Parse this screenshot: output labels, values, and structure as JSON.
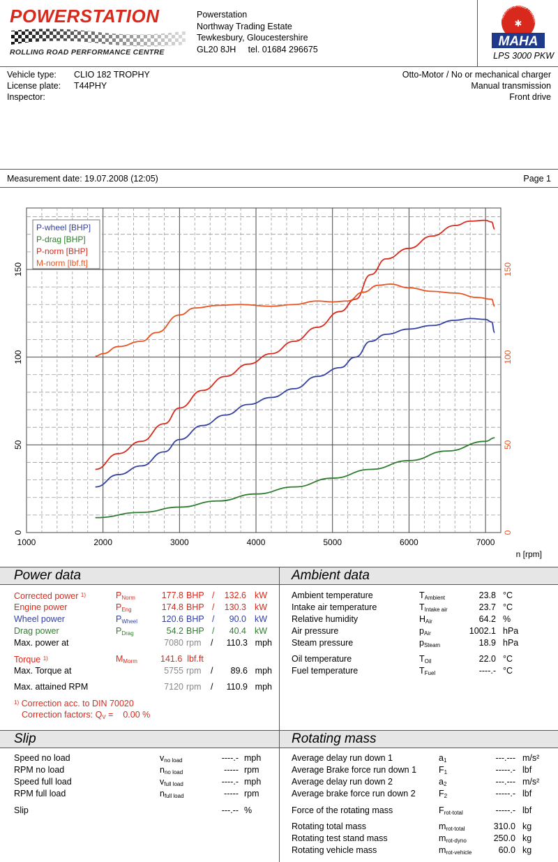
{
  "header": {
    "logo_title": "POWERSTATION",
    "logo_subtitle": "ROLLING ROAD PERFORMANCE CENTRE",
    "address": [
      "Powerstation",
      "Northway Trading Estate",
      "Tewkesbury, Gloucestershire",
      "GL20 8JH     tel. 01684 296675"
    ],
    "maha_logo": "MAHA",
    "maha_ring": "Maschinenbau Haldenwang",
    "dyno_model": "LPS 3000 PKW"
  },
  "vehicle": {
    "type_label": "Vehicle type:",
    "type_value": "CLIO 182 TROPHY",
    "plate_label": "License plate:",
    "plate_value": "T44PHY",
    "inspector_label": "Inspector:",
    "inspector_value": "",
    "engine": "Otto-Motor / No or mechanical charger",
    "transmission": "Manual transmission",
    "drive": "Front drive"
  },
  "measurement": {
    "date": "Measurement date: 19.07.2008 (12:05)",
    "page": "Page 1"
  },
  "colors": {
    "wheel": "#3340a0",
    "drag": "#2e7d2e",
    "norm": "#d8291c",
    "grid": "#555555"
  },
  "chart_data": {
    "type": "line",
    "xlabel": "n [rpm]",
    "xlim": [
      1000,
      7200
    ],
    "ylim": [
      0,
      185
    ],
    "x_ticks": [
      1000,
      2000,
      3000,
      4000,
      5000,
      6000,
      7000
    ],
    "y_ticks": [
      0,
      50,
      100,
      150
    ],
    "legend": "top-left",
    "series": [
      {
        "name": "P-wheel [BHP]",
        "color": "#3340a0",
        "x": [
          1900,
          2200,
          2500,
          2800,
          3000,
          3300,
          3600,
          3900,
          4200,
          4500,
          4800,
          5100,
          5300,
          5500,
          5700,
          6000,
          6300,
          6600,
          6800,
          7000,
          7080,
          7120
        ],
        "y": [
          26,
          33,
          38,
          46,
          53,
          61,
          67,
          73,
          77,
          82,
          89,
          94,
          100,
          109,
          113,
          116,
          118,
          121,
          122,
          121.5,
          120,
          114
        ]
      },
      {
        "name": "P-drag [BHP]",
        "color": "#2e7d2e",
        "x": [
          1900,
          2500,
          3000,
          3500,
          4000,
          4500,
          5000,
          5500,
          6000,
          6500,
          7000,
          7120
        ],
        "y": [
          8.5,
          11.5,
          14.5,
          18,
          22,
          26,
          31,
          36,
          41,
          46.5,
          52,
          54
        ]
      },
      {
        "name": "P-norm [BHP]",
        "color": "#d8291c",
        "x": [
          1900,
          2200,
          2500,
          2800,
          3000,
          3300,
          3600,
          3900,
          4200,
          4500,
          4800,
          5100,
          5300,
          5500,
          5700,
          6000,
          6300,
          6600,
          6800,
          7000,
          7080,
          7120
        ],
        "y": [
          36,
          45,
          52,
          62,
          71,
          81,
          89,
          96,
          102,
          109,
          117,
          126,
          133,
          147,
          156,
          162,
          169,
          175,
          177.5,
          178,
          177,
          173
        ]
      },
      {
        "name": "M-norm [lbf.ft]",
        "color": "#e8531f",
        "x": [
          1900,
          2000,
          2200,
          2500,
          2700,
          3000,
          3200,
          3500,
          3800,
          4200,
          4500,
          4800,
          5000,
          5200,
          5400,
          5600,
          5755,
          6000,
          6300,
          6600,
          6900,
          7080,
          7120
        ],
        "y": [
          100.5,
          102,
          106,
          109,
          114,
          124,
          128,
          129.5,
          130,
          129,
          130,
          132,
          131.5,
          132,
          137,
          141,
          141.6,
          139.5,
          137.5,
          136.5,
          134,
          133,
          129
        ]
      }
    ]
  },
  "axis": {
    "right_ticks": [
      "0",
      "50",
      "100",
      "150"
    ]
  },
  "power_data": {
    "title": "Power data",
    "corrected": {
      "label": "Corrected power",
      "sup": "1)",
      "sym": "P",
      "sub": "Norm",
      "bhp": "177.8",
      "kw": "132.6"
    },
    "engine": {
      "label": "Engine power",
      "sym": "P",
      "sub": "Eng",
      "bhp": "174.8",
      "kw": "130.3"
    },
    "wheel": {
      "label": "Wheel power",
      "sym": "P",
      "sub": "Wheel",
      "bhp": "120.6",
      "kw": "90.0"
    },
    "drag": {
      "label": "Drag power",
      "sym": "P",
      "sub": "Drag",
      "bhp": "54.2",
      "kw": "40.4"
    },
    "unit_bhp": "BHP",
    "unit_kw": "kW",
    "slash": "/",
    "max_power_at": {
      "label": "Max. power at",
      "rpm": "7080",
      "rpm_unit": "rpm",
      "speed": "110.3",
      "speed_unit": "mph"
    },
    "torque": {
      "label": "Torque",
      "sup": "1)",
      "sym": "M",
      "sub": "Morm",
      "value": "141.6",
      "unit": "lbf.ft"
    },
    "max_torque_at": {
      "label": "Max. Torque at",
      "rpm": "5755",
      "rpm_unit": "rpm",
      "speed": "89.6",
      "speed_unit": "mph"
    },
    "max_rpm": {
      "label": "Max. attained RPM",
      "rpm": "7120",
      "rpm_unit": "rpm",
      "speed": "110.9",
      "speed_unit": "mph"
    },
    "note1": "Correction acc. to DIN 70020",
    "note1_sup": "1)",
    "note2_prefix": "Correction factors: Q",
    "note2_sub": "V",
    "note2_suffix": " =    0.00 %"
  },
  "ambient_data": {
    "title": "Ambient data",
    "rows": [
      {
        "label": "Ambient temperature",
        "sym": "T",
        "sub": "Ambient",
        "value": "23.8",
        "unit": "°C"
      },
      {
        "label": "Intake air temperature",
        "sym": "T",
        "sub": "Intake air",
        "value": "23.7",
        "unit": "°C"
      },
      {
        "label": "Relative humidity",
        "sym": "H",
        "sub": "Air",
        "value": "64.2",
        "unit": "%"
      },
      {
        "label": "Air pressure",
        "sym": "p",
        "sub": "Air",
        "value": "1002.1",
        "unit": "hPa"
      },
      {
        "label": "Steam pressure",
        "sym": "p",
        "sub": "Steam",
        "value": "18.9",
        "unit": "hPa"
      },
      {
        "label": "Oil temperature",
        "sym": "T",
        "sub": "Oil",
        "value": "22.0",
        "unit": "°C"
      },
      {
        "label": "Fuel temperature",
        "sym": "T",
        "sub": "Fuel",
        "value": "----.-",
        "unit": "°C"
      }
    ]
  },
  "slip": {
    "title": "Slip",
    "rows": [
      {
        "label": "Speed no load",
        "sym": "v",
        "sub": "no load",
        "value": "----.-",
        "unit": "mph"
      },
      {
        "label": "RPM no load",
        "sym": "n",
        "sub": "no load",
        "value": "-----",
        "unit": "rpm"
      },
      {
        "label": "Speed full load",
        "sym": "v",
        "sub": "full load",
        "value": "----.-",
        "unit": "mph"
      },
      {
        "label": "RPM full load",
        "sym": "n",
        "sub": "full load",
        "value": "-----",
        "unit": "rpm"
      },
      {
        "label": "Slip",
        "sym": "",
        "sub": "",
        "value": "---.--",
        "unit": "%"
      }
    ]
  },
  "rotating_mass": {
    "title": "Rotating mass",
    "rows": [
      {
        "label": "Average delay run down 1",
        "sym": "a",
        "sub": "1",
        "value": "---.---",
        "unit": "m/s²"
      },
      {
        "label": "Average Brake force run down 1",
        "sym": "F",
        "sub": "1",
        "value": "-----.-",
        "unit": "lbf"
      },
      {
        "label": "Average delay run down 2",
        "sym": "a",
        "sub": "2",
        "value": "---.---",
        "unit": "m/s²"
      },
      {
        "label": "Average brake force run down 2",
        "sym": "F",
        "sub": "2",
        "value": "-----.-",
        "unit": "lbf"
      },
      {
        "label": "Force of the rotating mass",
        "sym": "F",
        "sub": "rot-total",
        "value": "-----.-",
        "unit": "lbf"
      },
      {
        "label": "Rotating total mass",
        "sym": "m",
        "sub": "rot-total",
        "value": "310.0",
        "unit": "kg"
      },
      {
        "label": "Rotating test stand mass",
        "sym": "m",
        "sub": "rot-dyno",
        "value": "250.0",
        "unit": "kg"
      },
      {
        "label": "Rotating vehicle mass",
        "sym": "m",
        "sub": "rot-vehicle",
        "value": "60.0",
        "unit": "kg"
      }
    ]
  }
}
